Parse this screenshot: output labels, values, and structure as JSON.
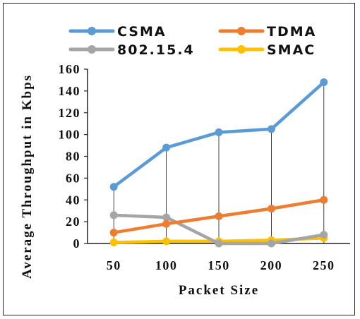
{
  "chart_data": {
    "type": "line",
    "title": "",
    "xlabel": "Packet Size",
    "ylabel": "Average Throughput in Kbps",
    "x": [
      50,
      100,
      150,
      200,
      250
    ],
    "x_tick_labels": [
      "50",
      "100",
      "150",
      "200",
      "250"
    ],
    "ylim": [
      0,
      160
    ],
    "y_ticks": [
      0,
      20,
      40,
      60,
      80,
      100,
      120,
      140,
      160
    ],
    "y_tick_labels": [
      "0",
      "20",
      "40",
      "60",
      "80",
      "100",
      "120",
      "140",
      "160"
    ],
    "grid": "vertical drop lines at each x value",
    "legend_position": "top",
    "series": [
      {
        "name": "CSMA",
        "color": "#5B9BD5",
        "values": [
          52,
          88,
          102,
          105,
          148
        ]
      },
      {
        "name": "TDMA",
        "color": "#ED7D31",
        "values": [
          10,
          18,
          25,
          32,
          40
        ]
      },
      {
        "name": "802.15.4",
        "color": "#A5A5A5",
        "values": [
          26,
          24,
          0,
          0,
          8
        ]
      },
      {
        "name": "SMAC",
        "color": "#FFC000",
        "values": [
          1,
          2,
          2,
          3,
          5
        ]
      }
    ]
  }
}
